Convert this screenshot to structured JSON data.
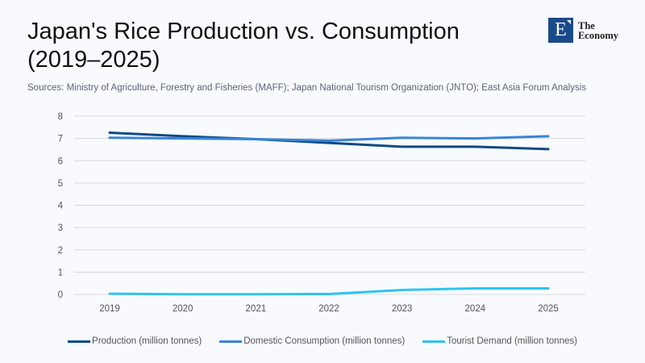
{
  "header": {
    "title_line1": "Japan's Rice Production vs. Consumption",
    "title_line2": "(2019–2025)",
    "sources": "Sources: Ministry of Agriculture, Forestry and Fisheries (MAFF); Japan National Tourism Organization (JNTO); East Asia Forum Analysis"
  },
  "logo": {
    "letter": "E",
    "line1": "The",
    "line2": "Economy",
    "color": "#1b4a8a"
  },
  "chart_data": {
    "type": "line",
    "title": "Japan's Rice Production vs. Consumption (2019–2025)",
    "xlabel": "",
    "ylabel": "",
    "x": [
      "2019",
      "2020",
      "2021",
      "2022",
      "2023",
      "2024",
      "2025"
    ],
    "ylim": [
      0,
      8
    ],
    "yticks": [
      0,
      1,
      2,
      3,
      4,
      5,
      6,
      7,
      8
    ],
    "grid": true,
    "legend_position": "bottom",
    "series": [
      {
        "name": "Production (million tonnes)",
        "color": "#0e4a86",
        "values": [
          7.26,
          7.1,
          6.97,
          6.8,
          6.63,
          6.63,
          6.52
        ]
      },
      {
        "name": "Domestic Consumption (million tonnes)",
        "color": "#3a84d6",
        "values": [
          7.03,
          7.0,
          6.97,
          6.9,
          7.03,
          7.0,
          7.1
        ]
      },
      {
        "name": "Tourist Demand (million tonnes)",
        "color": "#2ec4f2",
        "values": [
          0.03,
          0.01,
          0.01,
          0.02,
          0.2,
          0.27,
          0.27
        ]
      }
    ]
  }
}
